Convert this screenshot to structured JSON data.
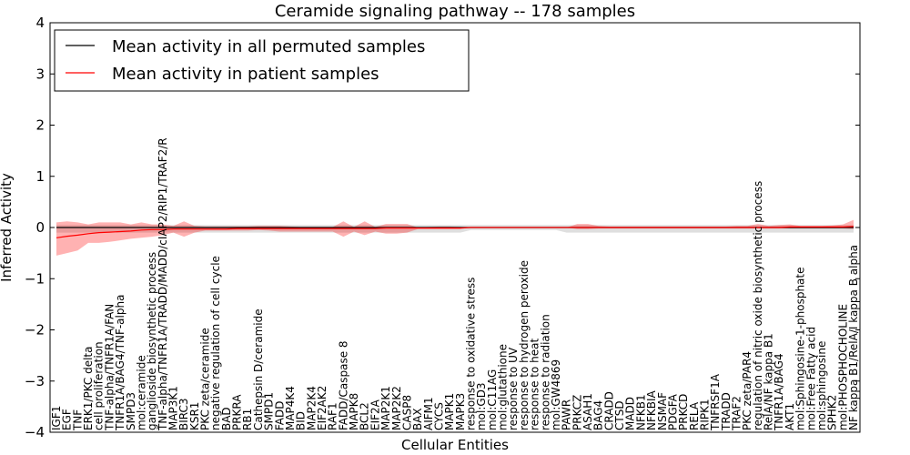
{
  "chart_data": {
    "type": "line",
    "title": "Ceramide signaling pathway -- 178 samples",
    "xlabel": "Cellular Entities",
    "ylabel": "Inferred Activity",
    "ylim": [
      -4,
      4
    ],
    "yticks": [
      -4,
      -3,
      -2,
      -1,
      0,
      1,
      2,
      3,
      4
    ],
    "ytick_labels": [
      "−4",
      "−3",
      "−2",
      "−1",
      "0",
      "1",
      "2",
      "3",
      "4"
    ],
    "legend": {
      "position": "top-left",
      "entries": [
        {
          "label": "Mean activity in all permuted samples",
          "color": "#000000"
        },
        {
          "label": "Mean activity in patient samples",
          "color": "#ff0000"
        }
      ]
    },
    "categories": [
      "IGF1",
      "EGF",
      "TNF",
      "ERK1/PKC delta",
      "cell proliferation",
      "TNF-alpha/TNFR1A/FAN",
      "TNFR1A/BAG4/TNF-alpha",
      "SMPD3",
      "mol:ceramide",
      "ganglioside biosynthetic process",
      "TNF-alpha/TNFR1A/TRADD/MADD/cIAP2/RIP1/TRAF2/R",
      "MAP3K1",
      "BIRC3",
      "KSR1",
      "PKC zeta/ceramide",
      "negative regulation of cell cycle",
      "BAD",
      "PRKRA",
      "RB1",
      "Cathepsin D/ceramide",
      "SMPD1",
      "FADD",
      "MAP4K4",
      "BID",
      "MAP2K4",
      "EIF2AK2",
      "RAF1",
      "FADD/Caspase 8",
      "MAPK8",
      "BCL2",
      "EIF2A",
      "MAP2K1",
      "MAP2K2",
      "CASP8",
      "BAX",
      "AIFM1",
      "CYCS",
      "MAPK1",
      "MAPK3",
      "response to oxidative stress",
      "mol:GD3",
      "mol:C11AG",
      "mol:glutathione",
      "response to UV",
      "response to hydrogen peroxide",
      "response to heat",
      "response to radiation",
      "mol:GW4869",
      "PAWR",
      "PRKCZ",
      "ASAH1",
      "BAG4",
      "CRADD",
      "CTSD",
      "MADD",
      "NFKB1",
      "NFKBIA",
      "NSMAF",
      "PDGFA",
      "PRKCD",
      "RELA",
      "RIPK1",
      "TNFRSF1A",
      "TRADD",
      "TRAF2",
      "PKC zeta/PAR4",
      "regulation of nitric oxide biosynthetic process",
      "RelA/NF kappa B1",
      "TNFR1A/BAG4",
      "AKT1",
      "mol:Sphingosine-1-phosphate",
      "mol:Free Fatty acid",
      "mol:sphingosine",
      "SPHK2",
      "mol:PHOSPHOCHOLINE",
      "NF kappa B1/RelA/I kappa B alpha"
    ],
    "series": [
      {
        "name": "Mean activity in patient samples",
        "color": "#ff0000",
        "values": [
          -0.2,
          -0.17,
          -0.15,
          -0.12,
          -0.1,
          -0.09,
          -0.08,
          -0.07,
          -0.05,
          -0.04,
          -0.04,
          -0.03,
          -0.03,
          -0.03,
          -0.03,
          -0.03,
          -0.03,
          -0.02,
          -0.02,
          -0.02,
          -0.02,
          -0.02,
          -0.02,
          -0.02,
          -0.02,
          -0.02,
          -0.02,
          -0.02,
          -0.02,
          -0.02,
          -0.02,
          -0.01,
          -0.01,
          -0.01,
          -0.01,
          -0.01,
          -0.01,
          -0.01,
          -0.01,
          0.0,
          0.0,
          0.0,
          0.0,
          0.0,
          0.0,
          0.0,
          0.0,
          0.0,
          0.0,
          0.0,
          0.0,
          0.0,
          0.0,
          0.0,
          0.0,
          0.0,
          0.0,
          0.0,
          0.0,
          0.0,
          0.0,
          0.0,
          0.0,
          0.0,
          0.0,
          0.0,
          0.0,
          0.0,
          0.0,
          0.01,
          0.01,
          0.01,
          0.01,
          0.01,
          0.01,
          0.02
        ],
        "band_upper": [
          0.1,
          0.12,
          0.1,
          0.06,
          0.1,
          0.1,
          0.1,
          0.06,
          0.1,
          0.06,
          0.06,
          0.03,
          0.12,
          0.03,
          0.02,
          0.02,
          0.02,
          0.02,
          0.02,
          0.03,
          0.03,
          0.03,
          0.02,
          0.01,
          0.01,
          0.01,
          0.01,
          0.12,
          0.01,
          0.12,
          0.01,
          0.07,
          0.07,
          0.07,
          0.0,
          0.01,
          0.02,
          0.02,
          0.01,
          0.0,
          0.0,
          0.0,
          0.0,
          0.0,
          0.0,
          0.0,
          0.0,
          0.0,
          0.0,
          0.07,
          0.07,
          0.03,
          0.02,
          0.02,
          0.02,
          0.02,
          0.02,
          0.02,
          0.02,
          0.02,
          0.02,
          0.02,
          0.02,
          0.02,
          0.03,
          0.03,
          0.07,
          0.03,
          0.05,
          0.06,
          0.03,
          0.03,
          0.03,
          0.04,
          0.06,
          0.15
        ],
        "band_lower": [
          -0.55,
          -0.5,
          -0.45,
          -0.3,
          -0.3,
          -0.28,
          -0.25,
          -0.22,
          -0.2,
          -0.18,
          -0.15,
          -0.1,
          -0.18,
          -0.1,
          -0.06,
          -0.06,
          -0.06,
          -0.06,
          -0.06,
          -0.05,
          -0.06,
          -0.08,
          -0.08,
          -0.08,
          -0.08,
          -0.08,
          -0.08,
          -0.18,
          -0.08,
          -0.15,
          -0.08,
          -0.12,
          -0.12,
          -0.1,
          -0.03,
          -0.03,
          -0.03,
          -0.03,
          -0.03,
          0.0,
          0.0,
          0.0,
          0.0,
          0.0,
          0.0,
          0.0,
          0.0,
          0.0,
          0.0,
          -0.03,
          -0.03,
          -0.02,
          -0.02,
          -0.02,
          -0.02,
          -0.02,
          -0.02,
          -0.02,
          -0.02,
          -0.02,
          -0.02,
          -0.02,
          -0.02,
          -0.02,
          -0.02,
          -0.02,
          -0.02,
          -0.02,
          -0.02,
          -0.02,
          -0.02,
          -0.02,
          -0.02,
          -0.02,
          -0.02,
          -0.03
        ]
      },
      {
        "name": "Mean activity in all permuted samples",
        "color": "#000000",
        "values": [
          0,
          0,
          0,
          0,
          0,
          0,
          0,
          0,
          0,
          0,
          0,
          0,
          0,
          0,
          0,
          0,
          0,
          0,
          0,
          0,
          0,
          0,
          0,
          0,
          0,
          0,
          0,
          0,
          0,
          0,
          0,
          0,
          0,
          0,
          0,
          0,
          0,
          0,
          0,
          0,
          0,
          0,
          0,
          0,
          0,
          0,
          0,
          0,
          0,
          0,
          0,
          0,
          0,
          0,
          0,
          0,
          0,
          0,
          0,
          0,
          0,
          0,
          0,
          0,
          0,
          0,
          0,
          0,
          0,
          0,
          0,
          0,
          0,
          0,
          0,
          0
        ],
        "band_upper": [
          0.05,
          0.05,
          0.05,
          0.05,
          0.05,
          0.05,
          0.05,
          0.05,
          0.05,
          0.05,
          0.05,
          0.05,
          0.05,
          0.05,
          0.05,
          0.05,
          0.05,
          0.05,
          0.05,
          0.05,
          0.05,
          0.05,
          0.05,
          0.05,
          0.05,
          0.05,
          0.05,
          0.05,
          0.05,
          0.05,
          0.05,
          0.05,
          0.05,
          0.05,
          0.05,
          0.05,
          0.05,
          0.05,
          0.05,
          0.05,
          0.05,
          0.05,
          0.05,
          0.05,
          0.05,
          0.05,
          0.05,
          0.05,
          0.05,
          0.05,
          0.05,
          0.05,
          0.05,
          0.05,
          0.05,
          0.05,
          0.05,
          0.05,
          0.05,
          0.05,
          0.05,
          0.05,
          0.05,
          0.05,
          0.05,
          0.05,
          0.05,
          0.05,
          0.05,
          0.05,
          0.05,
          0.05,
          0.05,
          0.05,
          0.05,
          0.05
        ],
        "band_lower": [
          -0.1,
          -0.1,
          -0.1,
          -0.1,
          -0.1,
          -0.1,
          -0.1,
          -0.1,
          -0.1,
          -0.1,
          -0.1,
          -0.1,
          -0.1,
          -0.1,
          -0.1,
          -0.1,
          -0.1,
          -0.1,
          -0.1,
          -0.1,
          -0.1,
          -0.1,
          -0.1,
          -0.1,
          -0.1,
          -0.1,
          -0.1,
          -0.1,
          -0.1,
          -0.1,
          -0.1,
          -0.1,
          -0.1,
          -0.1,
          -0.1,
          -0.1,
          -0.1,
          -0.1,
          -0.1,
          -0.05,
          -0.05,
          -0.05,
          -0.05,
          -0.05,
          -0.05,
          -0.05,
          -0.05,
          -0.05,
          -0.1,
          -0.1,
          -0.1,
          -0.1,
          -0.1,
          -0.1,
          -0.1,
          -0.1,
          -0.1,
          -0.1,
          -0.1,
          -0.1,
          -0.1,
          -0.1,
          -0.1,
          -0.1,
          -0.1,
          -0.1,
          -0.1,
          -0.1,
          -0.1,
          -0.1,
          -0.1,
          -0.1,
          -0.1,
          -0.1,
          -0.1,
          -0.1
        ]
      }
    ]
  }
}
